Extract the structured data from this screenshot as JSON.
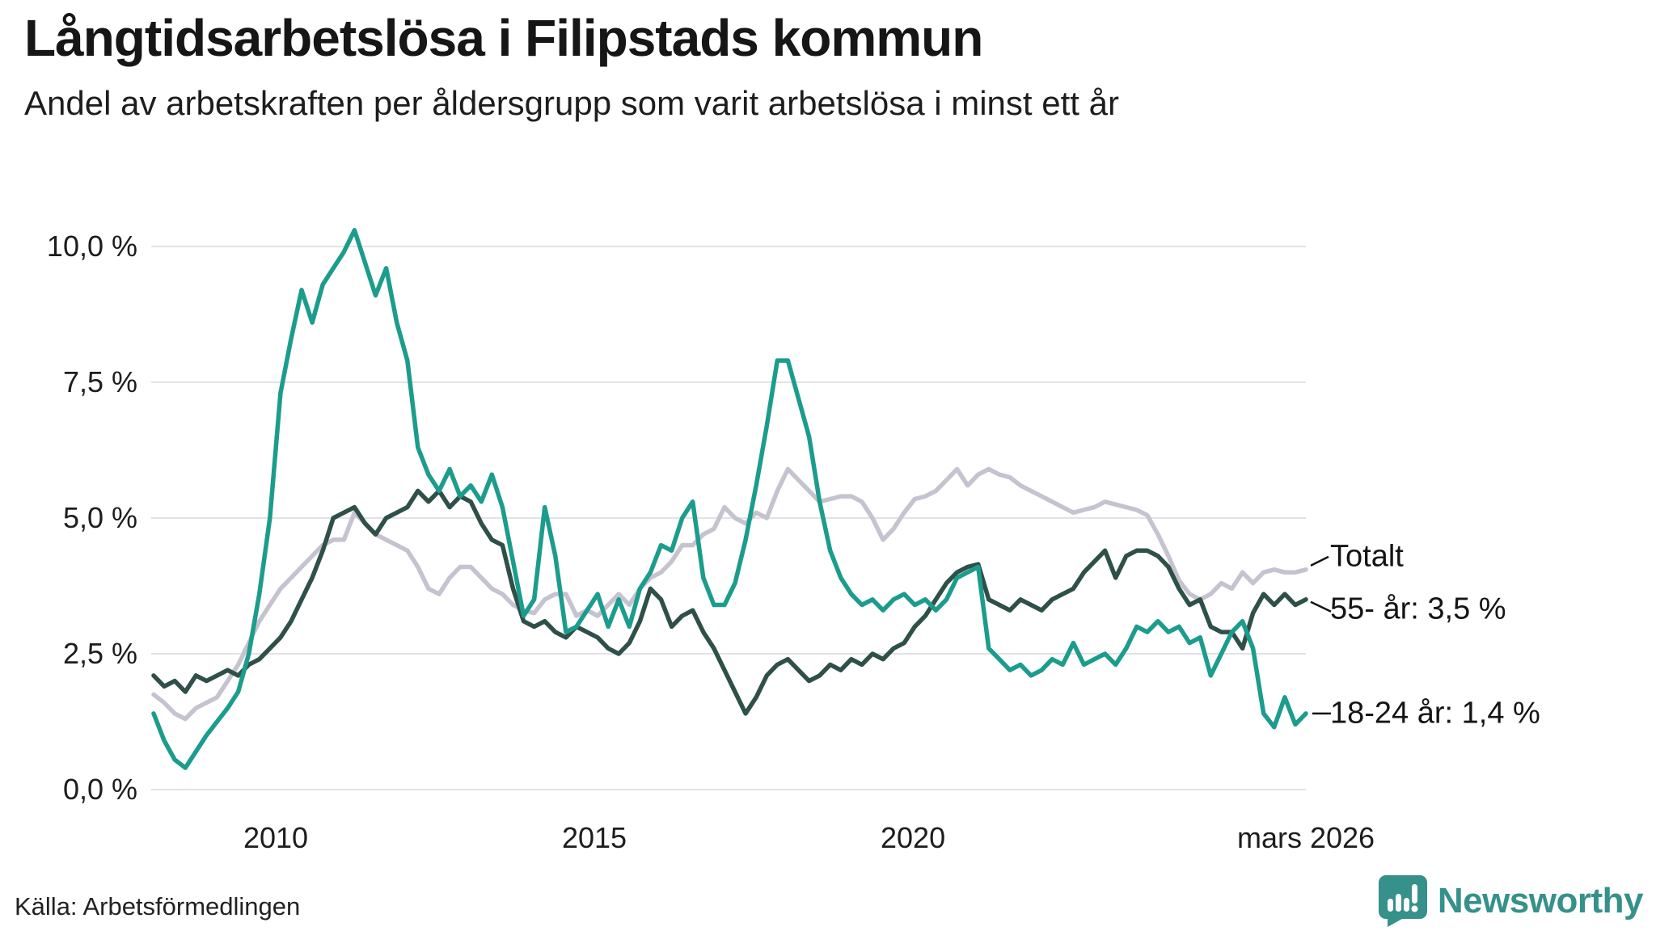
{
  "header": {
    "title": "Långtidsarbetslösa i Filipstads kommun",
    "subtitle": "Andel av arbetskraften per åldersgrupp som varit arbetslösa i minst ett år"
  },
  "footer": {
    "source": "Källa: Arbetsförmedlingen",
    "logo_text": "Newsworthy",
    "logo_color": "#35918a"
  },
  "chart_data": {
    "type": "line",
    "title": "Långtidsarbetslösa i Filipstads kommun",
    "subtitle": "Andel av arbetskraften per åldersgrupp som varit arbetslösa i minst ett år",
    "unit": "%",
    "x_start": "2008-02",
    "x_end": "2026-03",
    "months_total": 217,
    "ylim": [
      0,
      10.5
    ],
    "grid": "horizontal",
    "grid_color": "#e3e3e7",
    "text_color": "#1d1d1d",
    "y_ticks": [
      {
        "value": 10.0,
        "label": "10,0 %"
      },
      {
        "value": 7.5,
        "label": "7,5 %"
      },
      {
        "value": 5.0,
        "label": "5,0 %"
      },
      {
        "value": 2.5,
        "label": "2,5 %"
      },
      {
        "value": 0.0,
        "label": "0,0 %"
      }
    ],
    "x_ticks": [
      {
        "label": "2010",
        "month": 23
      },
      {
        "label": "2015",
        "month": 83
      },
      {
        "label": "2020",
        "month": 143
      },
      {
        "label": "mars 2026",
        "month": 217
      }
    ],
    "legend_position": "right-annotations",
    "annotations": [
      {
        "series": "Totalt",
        "label": "Totalt"
      },
      {
        "series": "55- år",
        "label": "55- år: 3,5 %"
      },
      {
        "series": "18-24 år",
        "label": "18-24 år: 1,4 %"
      }
    ],
    "series": [
      {
        "name": "Totalt",
        "color": "#c6c3d0",
        "values": [
          1.75,
          1.6,
          1.4,
          1.3,
          1.5,
          1.6,
          1.7,
          2.0,
          2.3,
          2.7,
          3.1,
          3.4,
          3.7,
          3.9,
          4.1,
          4.3,
          4.5,
          4.6,
          4.6,
          5.1,
          4.9,
          4.7,
          4.6,
          4.5,
          4.4,
          4.1,
          3.7,
          3.6,
          3.9,
          4.1,
          4.1,
          3.9,
          3.7,
          3.6,
          3.4,
          3.3,
          3.25,
          3.5,
          3.6,
          3.6,
          3.2,
          3.3,
          3.2,
          3.4,
          3.6,
          3.4,
          3.7,
          3.9,
          4.0,
          4.2,
          4.5,
          4.5,
          4.7,
          4.8,
          5.2,
          5.0,
          4.9,
          5.1,
          5.0,
          5.5,
          5.9,
          5.7,
          5.5,
          5.3,
          5.35,
          5.4,
          5.4,
          5.3,
          5.0,
          4.6,
          4.8,
          5.1,
          5.35,
          5.4,
          5.5,
          5.7,
          5.9,
          5.6,
          5.8,
          5.9,
          5.8,
          5.75,
          5.6,
          5.5,
          5.4,
          5.3,
          5.2,
          5.1,
          5.15,
          5.2,
          5.3,
          5.25,
          5.2,
          5.15,
          5.05,
          4.7,
          4.3,
          3.85,
          3.6,
          3.5,
          3.6,
          3.8,
          3.7,
          4.0,
          3.8,
          4.0,
          4.05,
          4.0,
          4.0,
          4.05
        ]
      },
      {
        "name": "55- år",
        "color": "#2e5048",
        "values": [
          2.1,
          1.9,
          2.0,
          1.8,
          2.1,
          2.0,
          2.1,
          2.2,
          2.1,
          2.3,
          2.4,
          2.6,
          2.8,
          3.1,
          3.5,
          3.9,
          4.4,
          5.0,
          5.1,
          5.2,
          4.9,
          4.7,
          5.0,
          5.1,
          5.2,
          5.5,
          5.3,
          5.5,
          5.2,
          5.4,
          5.3,
          4.9,
          4.6,
          4.5,
          3.7,
          3.1,
          3.0,
          3.1,
          2.9,
          2.8,
          3.0,
          2.9,
          2.8,
          2.6,
          2.5,
          2.7,
          3.1,
          3.7,
          3.5,
          3.0,
          3.2,
          3.3,
          2.9,
          2.6,
          2.2,
          1.8,
          1.4,
          1.7,
          2.1,
          2.3,
          2.4,
          2.2,
          2.0,
          2.1,
          2.3,
          2.2,
          2.4,
          2.3,
          2.5,
          2.4,
          2.6,
          2.7,
          3.0,
          3.2,
          3.5,
          3.8,
          4.0,
          4.1,
          4.15,
          3.5,
          3.4,
          3.3,
          3.5,
          3.4,
          3.3,
          3.5,
          3.6,
          3.7,
          4.0,
          4.2,
          4.4,
          3.9,
          4.3,
          4.4,
          4.4,
          4.3,
          4.1,
          3.7,
          3.4,
          3.5,
          3.0,
          2.9,
          2.9,
          2.6,
          3.25,
          3.6,
          3.4,
          3.6,
          3.4,
          3.5
        ]
      },
      {
        "name": "18-24 år",
        "color": "#1c9c8c",
        "values": [
          1.4,
          0.9,
          0.55,
          0.4,
          0.7,
          1.0,
          1.25,
          1.5,
          1.8,
          2.5,
          3.6,
          5.0,
          7.3,
          8.3,
          9.2,
          8.6,
          9.3,
          9.6,
          9.9,
          10.3,
          9.7,
          9.1,
          9.6,
          8.6,
          7.9,
          6.3,
          5.8,
          5.5,
          5.9,
          5.4,
          5.6,
          5.3,
          5.8,
          5.2,
          4.2,
          3.2,
          3.5,
          5.2,
          4.3,
          2.9,
          3.0,
          3.3,
          3.6,
          3.0,
          3.5,
          3.0,
          3.7,
          4.0,
          4.5,
          4.4,
          5.0,
          5.3,
          3.9,
          3.4,
          3.4,
          3.8,
          4.6,
          5.6,
          6.7,
          7.9,
          7.9,
          7.2,
          6.5,
          5.3,
          4.4,
          3.9,
          3.6,
          3.4,
          3.5,
          3.3,
          3.5,
          3.6,
          3.4,
          3.5,
          3.3,
          3.5,
          3.9,
          4.0,
          4.1,
          2.6,
          2.4,
          2.2,
          2.3,
          2.1,
          2.2,
          2.4,
          2.3,
          2.7,
          2.3,
          2.4,
          2.5,
          2.3,
          2.6,
          3.0,
          2.9,
          3.1,
          2.9,
          3.0,
          2.7,
          2.8,
          2.1,
          2.5,
          2.9,
          3.1,
          2.6,
          1.4,
          1.15,
          1.7,
          1.2,
          1.4
        ]
      }
    ]
  }
}
